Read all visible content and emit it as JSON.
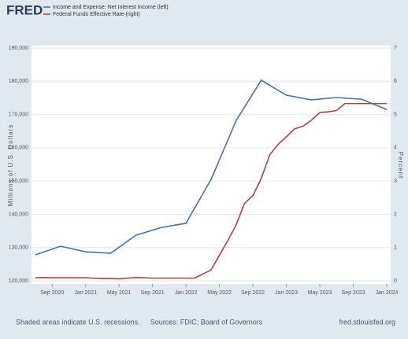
{
  "logo": "FRED",
  "chart_data": {
    "type": "line",
    "y_label": "Millions of U.S. Dollars",
    "y2_label": "Percent",
    "xlim": [
      "2020-07",
      "2024-01"
    ],
    "xticks": [
      {
        "value": "2020-09",
        "label": "Sep 2020"
      },
      {
        "value": "2021-01",
        "label": "Jan 2021"
      },
      {
        "value": "2021-05",
        "label": "May 2021"
      },
      {
        "value": "2021-09",
        "label": "Sep 2021"
      },
      {
        "value": "2022-01",
        "label": "Jan 2022"
      },
      {
        "value": "2022-05",
        "label": "May 2022"
      },
      {
        "value": "2022-09",
        "label": "Sep 2022"
      },
      {
        "value": "2023-01",
        "label": "Jan 2023"
      },
      {
        "value": "2023-05",
        "label": "May 2023"
      },
      {
        "value": "2023-09",
        "label": "Sep 2023"
      },
      {
        "value": "2024-01",
        "label": "Jan 2024"
      }
    ],
    "ylim": [
      120000,
      190000
    ],
    "yticks": [
      {
        "value": 120000,
        "label": "120,000"
      },
      {
        "value": 130000,
        "label": "130,000"
      },
      {
        "value": 140000,
        "label": "140,000"
      },
      {
        "value": 150000,
        "label": "150,000"
      },
      {
        "value": 160000,
        "label": "160,000"
      },
      {
        "value": 170000,
        "label": "170,000"
      },
      {
        "value": 180000,
        "label": "180,000"
      },
      {
        "value": 190000,
        "label": "190,000"
      }
    ],
    "y2lim": [
      0,
      7
    ],
    "y2ticks": [
      0,
      1,
      2,
      3,
      4,
      5,
      6,
      7
    ],
    "grid": true,
    "series": [
      {
        "name": "Income and Expense: Net Interest Income (left)",
        "color": "#4572a7",
        "x": [
          "2020-07",
          "2020-10",
          "2021-01",
          "2021-04",
          "2021-07",
          "2021-10",
          "2022-01",
          "2022-04",
          "2022-07",
          "2022-10",
          "2023-01",
          "2023-04",
          "2023-07",
          "2023-10",
          "2024-01"
        ],
        "values": [
          127800,
          130400,
          128700,
          128300,
          133700,
          136000,
          137300,
          150500,
          168200,
          180300,
          175800,
          174400,
          175100,
          174600,
          171500
        ]
      },
      {
        "name": "Federal Funds Effective Rate (right)",
        "color": "#aa4643",
        "axis": "y2",
        "x": [
          "2020-07",
          "2020-08",
          "2020-09",
          "2020-10",
          "2020-11",
          "2020-12",
          "2021-01",
          "2021-02",
          "2021-03",
          "2021-04",
          "2021-05",
          "2021-06",
          "2021-07",
          "2021-08",
          "2021-09",
          "2021-10",
          "2021-11",
          "2021-12",
          "2022-01",
          "2022-02",
          "2022-03",
          "2022-04",
          "2022-05",
          "2022-06",
          "2022-07",
          "2022-08",
          "2022-09",
          "2022-10",
          "2022-11",
          "2022-12",
          "2023-01",
          "2023-02",
          "2023-03",
          "2023-04",
          "2023-05",
          "2023-06",
          "2023-07",
          "2023-08",
          "2023-09",
          "2023-10",
          "2023-11",
          "2023-12",
          "2024-01"
        ],
        "values": [
          0.09,
          0.1,
          0.09,
          0.09,
          0.09,
          0.09,
          0.09,
          0.08,
          0.07,
          0.07,
          0.06,
          0.08,
          0.1,
          0.09,
          0.08,
          0.08,
          0.08,
          0.08,
          0.08,
          0.08,
          0.2,
          0.33,
          0.77,
          1.21,
          1.68,
          2.33,
          2.56,
          3.08,
          3.78,
          4.1,
          4.33,
          4.57,
          4.65,
          4.83,
          5.06,
          5.08,
          5.12,
          5.33,
          5.33,
          5.33,
          5.33,
          5.33,
          5.33
        ]
      }
    ]
  },
  "footer": {
    "left": "Shaded areas indicate U.S. recessions.",
    "center": "Sources: FDIC; Board of Governors",
    "right": "fred.stlouisfed.org"
  }
}
